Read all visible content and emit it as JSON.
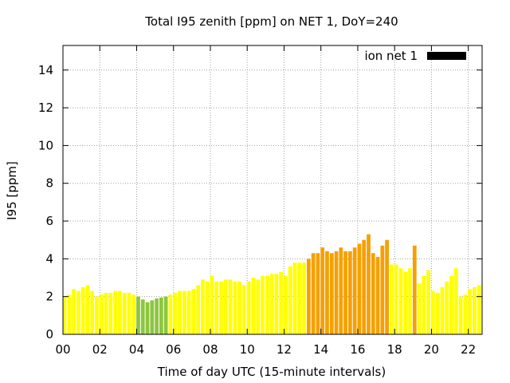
{
  "chart_data": {
    "type": "bar",
    "title": "Total I95 zenith [ppm] on NET 1, DoY=240",
    "xlabel": "Time of day UTC (15-minute intervals)",
    "ylabel": "I95 [ppm]",
    "ylim": [
      0,
      15.3
    ],
    "xlim": [
      0,
      22.75
    ],
    "yticks": [
      0,
      2,
      4,
      6,
      8,
      10,
      12,
      14
    ],
    "xticks": [
      0,
      2,
      4,
      6,
      8,
      10,
      12,
      14,
      16,
      18,
      20,
      22
    ],
    "xtick_labels": [
      "00",
      "02",
      "04",
      "06",
      "08",
      "10",
      "12",
      "14",
      "16",
      "18",
      "20",
      "22"
    ],
    "grid": true,
    "legend_position": "top-right",
    "series": [
      {
        "name": "ion net 1",
        "color": "#000000"
      }
    ],
    "colors": {
      "low": "#ffff00",
      "min": "#8cc63e",
      "mid": "#f5b800",
      "high": "#f5a000"
    },
    "bars": [
      {
        "t": 0.0,
        "v": 2.0,
        "c": "#ffff00"
      },
      {
        "t": 0.25,
        "v": 2.1,
        "c": "#ffff00"
      },
      {
        "t": 0.5,
        "v": 2.4,
        "c": "#ffff00"
      },
      {
        "t": 0.75,
        "v": 2.3,
        "c": "#ffff00"
      },
      {
        "t": 1.0,
        "v": 2.5,
        "c": "#ffff00"
      },
      {
        "t": 1.25,
        "v": 2.6,
        "c": "#ffff00"
      },
      {
        "t": 1.5,
        "v": 2.3,
        "c": "#ffff00"
      },
      {
        "t": 1.75,
        "v": 2.0,
        "c": "#ffff00"
      },
      {
        "t": 2.0,
        "v": 2.1,
        "c": "#ffff00"
      },
      {
        "t": 2.25,
        "v": 2.2,
        "c": "#ffff00"
      },
      {
        "t": 2.5,
        "v": 2.2,
        "c": "#ffff00"
      },
      {
        "t": 2.75,
        "v": 2.3,
        "c": "#ffff00"
      },
      {
        "t": 3.0,
        "v": 2.3,
        "c": "#ffff00"
      },
      {
        "t": 3.25,
        "v": 2.2,
        "c": "#ffff00"
      },
      {
        "t": 3.5,
        "v": 2.2,
        "c": "#ffff00"
      },
      {
        "t": 3.75,
        "v": 2.1,
        "c": "#ffff00"
      },
      {
        "t": 4.0,
        "v": 2.0,
        "c": "#8cc63e"
      },
      {
        "t": 4.25,
        "v": 1.85,
        "c": "#8cc63e"
      },
      {
        "t": 4.5,
        "v": 1.7,
        "c": "#8cc63e"
      },
      {
        "t": 4.75,
        "v": 1.8,
        "c": "#8cc63e"
      },
      {
        "t": 5.0,
        "v": 1.9,
        "c": "#8cc63e"
      },
      {
        "t": 5.25,
        "v": 1.95,
        "c": "#8cc63e"
      },
      {
        "t": 5.5,
        "v": 2.0,
        "c": "#8cc63e"
      },
      {
        "t": 5.75,
        "v": 2.1,
        "c": "#ffff00"
      },
      {
        "t": 6.0,
        "v": 2.2,
        "c": "#ffff00"
      },
      {
        "t": 6.25,
        "v": 2.3,
        "c": "#ffff00"
      },
      {
        "t": 6.5,
        "v": 2.3,
        "c": "#ffff00"
      },
      {
        "t": 6.75,
        "v": 2.3,
        "c": "#ffff00"
      },
      {
        "t": 7.0,
        "v": 2.4,
        "c": "#ffff00"
      },
      {
        "t": 7.25,
        "v": 2.6,
        "c": "#ffff00"
      },
      {
        "t": 7.5,
        "v": 2.9,
        "c": "#ffff00"
      },
      {
        "t": 7.75,
        "v": 2.8,
        "c": "#ffff00"
      },
      {
        "t": 8.0,
        "v": 3.1,
        "c": "#ffff00"
      },
      {
        "t": 8.25,
        "v": 2.8,
        "c": "#ffff00"
      },
      {
        "t": 8.5,
        "v": 2.8,
        "c": "#ffff00"
      },
      {
        "t": 8.75,
        "v": 2.9,
        "c": "#ffff00"
      },
      {
        "t": 9.0,
        "v": 2.9,
        "c": "#ffff00"
      },
      {
        "t": 9.25,
        "v": 2.8,
        "c": "#ffff00"
      },
      {
        "t": 9.5,
        "v": 2.8,
        "c": "#ffff00"
      },
      {
        "t": 9.75,
        "v": 2.6,
        "c": "#ffff00"
      },
      {
        "t": 10.0,
        "v": 2.8,
        "c": "#ffff00"
      },
      {
        "t": 10.25,
        "v": 3.0,
        "c": "#ffff00"
      },
      {
        "t": 10.5,
        "v": 2.9,
        "c": "#ffff00"
      },
      {
        "t": 10.75,
        "v": 3.1,
        "c": "#ffff00"
      },
      {
        "t": 11.0,
        "v": 3.1,
        "c": "#ffff00"
      },
      {
        "t": 11.25,
        "v": 3.2,
        "c": "#ffff00"
      },
      {
        "t": 11.5,
        "v": 3.2,
        "c": "#ffff00"
      },
      {
        "t": 11.75,
        "v": 3.3,
        "c": "#ffff00"
      },
      {
        "t": 12.0,
        "v": 3.1,
        "c": "#ffff00"
      },
      {
        "t": 12.25,
        "v": 3.6,
        "c": "#ffff00"
      },
      {
        "t": 12.5,
        "v": 3.8,
        "c": "#ffff00"
      },
      {
        "t": 12.75,
        "v": 3.8,
        "c": "#ffff00"
      },
      {
        "t": 13.0,
        "v": 3.8,
        "c": "#ffff00"
      },
      {
        "t": 13.25,
        "v": 4.0,
        "c": "#f5a000"
      },
      {
        "t": 13.5,
        "v": 4.3,
        "c": "#f5a000"
      },
      {
        "t": 13.75,
        "v": 4.3,
        "c": "#f5a000"
      },
      {
        "t": 14.0,
        "v": 4.6,
        "c": "#f5a000"
      },
      {
        "t": 14.25,
        "v": 4.4,
        "c": "#f5a000"
      },
      {
        "t": 14.5,
        "v": 4.3,
        "c": "#f5a000"
      },
      {
        "t": 14.75,
        "v": 4.4,
        "c": "#f5a000"
      },
      {
        "t": 15.0,
        "v": 4.6,
        "c": "#f5a000"
      },
      {
        "t": 15.25,
        "v": 4.4,
        "c": "#f5a000"
      },
      {
        "t": 15.5,
        "v": 4.4,
        "c": "#f5a000"
      },
      {
        "t": 15.75,
        "v": 4.6,
        "c": "#f5a000"
      },
      {
        "t": 16.0,
        "v": 4.8,
        "c": "#f5a000"
      },
      {
        "t": 16.25,
        "v": 5.0,
        "c": "#f5a000"
      },
      {
        "t": 16.5,
        "v": 5.3,
        "c": "#f5a000"
      },
      {
        "t": 16.75,
        "v": 4.3,
        "c": "#f5a000"
      },
      {
        "t": 17.0,
        "v": 4.1,
        "c": "#f5a000"
      },
      {
        "t": 17.25,
        "v": 4.7,
        "c": "#f5a000"
      },
      {
        "t": 17.5,
        "v": 5.0,
        "c": "#f5a000"
      },
      {
        "t": 17.75,
        "v": 3.7,
        "c": "#ffff00"
      },
      {
        "t": 18.0,
        "v": 3.7,
        "c": "#ffff00"
      },
      {
        "t": 18.25,
        "v": 3.5,
        "c": "#ffff00"
      },
      {
        "t": 18.5,
        "v": 3.3,
        "c": "#ffff00"
      },
      {
        "t": 18.75,
        "v": 3.5,
        "c": "#ffff00"
      },
      {
        "t": 19.0,
        "v": 4.7,
        "c": "#f5a000"
      },
      {
        "t": 19.25,
        "v": 2.7,
        "c": "#ffff00"
      },
      {
        "t": 19.5,
        "v": 3.1,
        "c": "#ffff00"
      },
      {
        "t": 19.75,
        "v": 3.4,
        "c": "#ffff00"
      },
      {
        "t": 20.0,
        "v": 2.3,
        "c": "#ffff00"
      },
      {
        "t": 20.25,
        "v": 2.2,
        "c": "#ffff00"
      },
      {
        "t": 20.5,
        "v": 2.5,
        "c": "#ffff00"
      },
      {
        "t": 20.75,
        "v": 2.8,
        "c": "#ffff00"
      },
      {
        "t": 21.0,
        "v": 3.1,
        "c": "#ffff00"
      },
      {
        "t": 21.25,
        "v": 3.5,
        "c": "#ffff00"
      },
      {
        "t": 21.5,
        "v": 2.0,
        "c": "#ffff00"
      },
      {
        "t": 21.75,
        "v": 2.1,
        "c": "#ffff00"
      },
      {
        "t": 22.0,
        "v": 2.4,
        "c": "#ffff00"
      },
      {
        "t": 22.25,
        "v": 2.5,
        "c": "#ffff00"
      },
      {
        "t": 22.5,
        "v": 2.6,
        "c": "#ffff00"
      }
    ]
  }
}
